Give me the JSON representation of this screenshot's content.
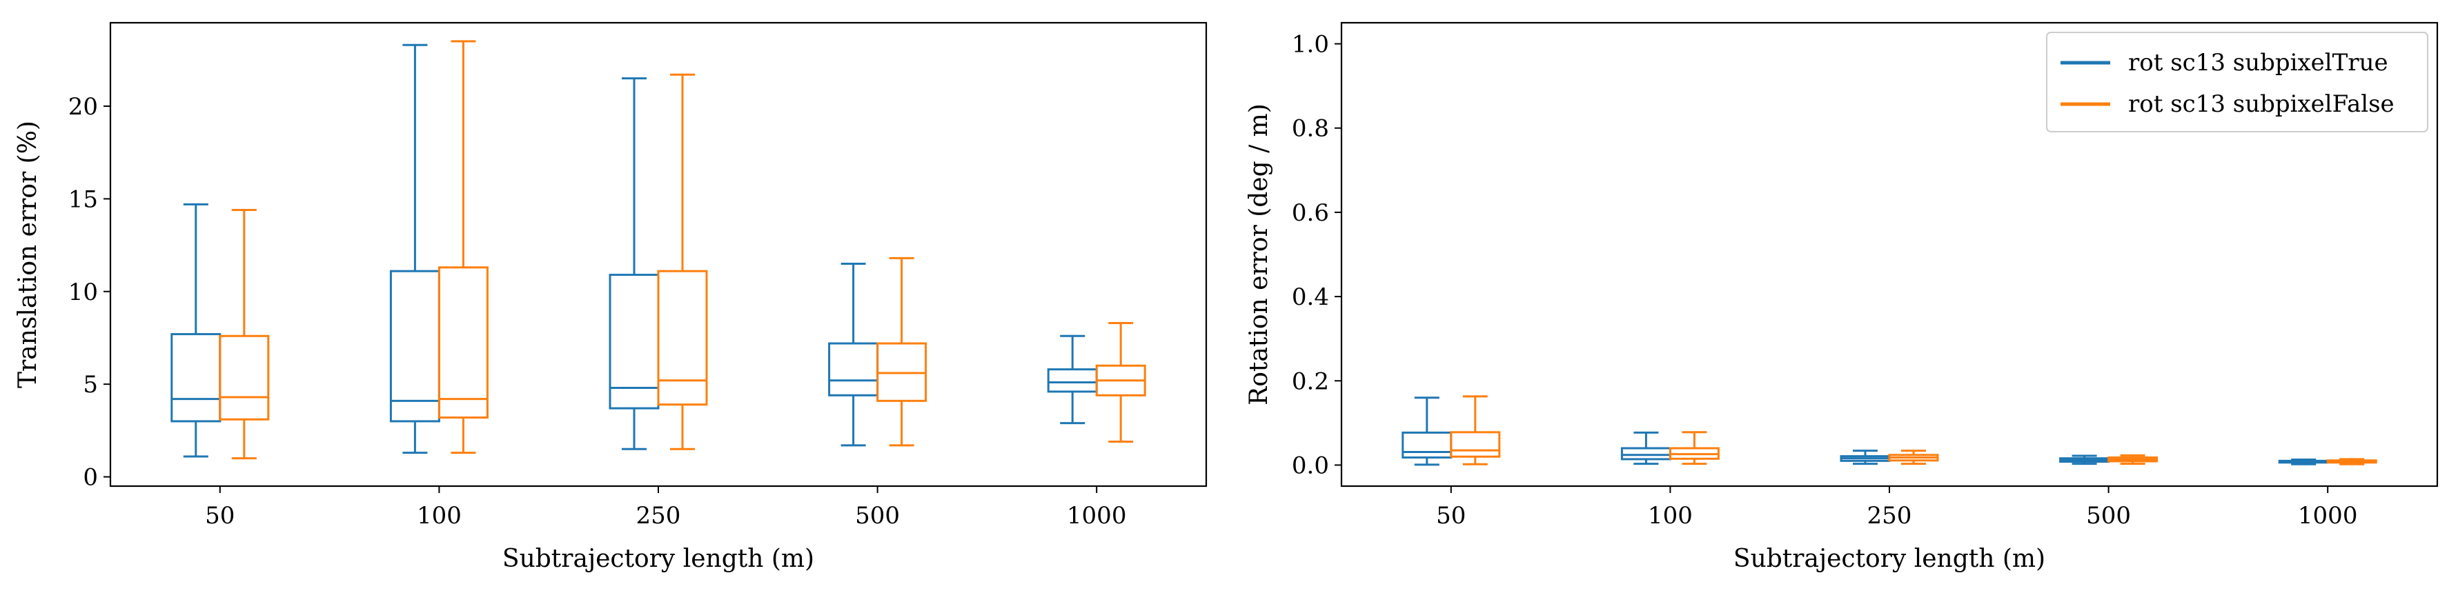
{
  "colors": {
    "subpixelTrue": "#1f77b4",
    "subpixelFalse": "#ff7f0e",
    "axes": "#000000",
    "background": "#ffffff"
  },
  "chart_data": [
    {
      "type": "box",
      "xlabel": "Subtrajectory length (m)",
      "ylabel": "Translation error (%)",
      "ylim": [
        -0.5,
        24.5
      ],
      "yticks": [
        "0",
        "5",
        "10",
        "15",
        "20"
      ],
      "categories": [
        "50",
        "100",
        "250",
        "500",
        "1000"
      ],
      "grid": false,
      "legend": false,
      "series": [
        {
          "name": "rot sc13 subpixelTrue",
          "color": "#1f77b4",
          "boxes": [
            {
              "whislo": 1.1,
              "q1": 3.0,
              "med": 4.2,
              "q3": 7.7,
              "whishi": 14.7
            },
            {
              "whislo": 1.3,
              "q1": 3.0,
              "med": 4.1,
              "q3": 11.1,
              "whishi": 23.3
            },
            {
              "whislo": 1.5,
              "q1": 3.7,
              "med": 4.8,
              "q3": 10.9,
              "whishi": 21.5
            },
            {
              "whislo": 1.7,
              "q1": 4.4,
              "med": 5.2,
              "q3": 7.2,
              "whishi": 11.5
            },
            {
              "whislo": 2.9,
              "q1": 4.6,
              "med": 5.1,
              "q3": 5.8,
              "whishi": 7.6
            }
          ]
        },
        {
          "name": "rot sc13 subpixelFalse",
          "color": "#ff7f0e",
          "boxes": [
            {
              "whislo": 1.0,
              "q1": 3.1,
              "med": 4.3,
              "q3": 7.6,
              "whishi": 14.4
            },
            {
              "whislo": 1.3,
              "q1": 3.2,
              "med": 4.2,
              "q3": 11.3,
              "whishi": 23.5
            },
            {
              "whislo": 1.5,
              "q1": 3.9,
              "med": 5.2,
              "q3": 11.1,
              "whishi": 21.7
            },
            {
              "whislo": 1.7,
              "q1": 4.1,
              "med": 5.6,
              "q3": 7.2,
              "whishi": 11.8
            },
            {
              "whislo": 1.9,
              "q1": 4.4,
              "med": 5.2,
              "q3": 6.0,
              "whishi": 8.3
            }
          ]
        }
      ]
    },
    {
      "type": "box",
      "xlabel": "Subtrajectory length (m)",
      "ylabel": "Rotation error (deg / m)",
      "ylim": [
        -0.05,
        1.05
      ],
      "yticks": [
        "0.0",
        "0.2",
        "0.4",
        "0.6",
        "0.8",
        "1.0"
      ],
      "categories": [
        "50",
        "100",
        "250",
        "500",
        "1000"
      ],
      "grid": false,
      "legend": true,
      "legend_position": "top-right",
      "series": [
        {
          "name": "rot sc13 subpixelTrue",
          "color": "#1f77b4",
          "boxes": [
            {
              "whislo": 0.001,
              "q1": 0.018,
              "med": 0.031,
              "q3": 0.077,
              "whishi": 0.16
            },
            {
              "whislo": 0.003,
              "q1": 0.014,
              "med": 0.024,
              "q3": 0.04,
              "whishi": 0.077
            },
            {
              "whislo": 0.003,
              "q1": 0.01,
              "med": 0.016,
              "q3": 0.021,
              "whishi": 0.034
            },
            {
              "whislo": 0.003,
              "q1": 0.008,
              "med": 0.012,
              "q3": 0.016,
              "whishi": 0.022
            },
            {
              "whislo": 0.002,
              "q1": 0.006,
              "med": 0.008,
              "q3": 0.01,
              "whishi": 0.013
            }
          ]
        },
        {
          "name": "rot sc13 subpixelFalse",
          "color": "#ff7f0e",
          "boxes": [
            {
              "whislo": 0.002,
              "q1": 0.02,
              "med": 0.035,
              "q3": 0.078,
              "whishi": 0.163
            },
            {
              "whislo": 0.003,
              "q1": 0.015,
              "med": 0.026,
              "q3": 0.04,
              "whishi": 0.078
            },
            {
              "whislo": 0.003,
              "q1": 0.011,
              "med": 0.018,
              "q3": 0.024,
              "whishi": 0.034
            },
            {
              "whislo": 0.003,
              "q1": 0.009,
              "med": 0.013,
              "q3": 0.018,
              "whishi": 0.023
            },
            {
              "whislo": 0.002,
              "q1": 0.006,
              "med": 0.009,
              "q3": 0.011,
              "whishi": 0.014
            }
          ]
        }
      ]
    }
  ]
}
